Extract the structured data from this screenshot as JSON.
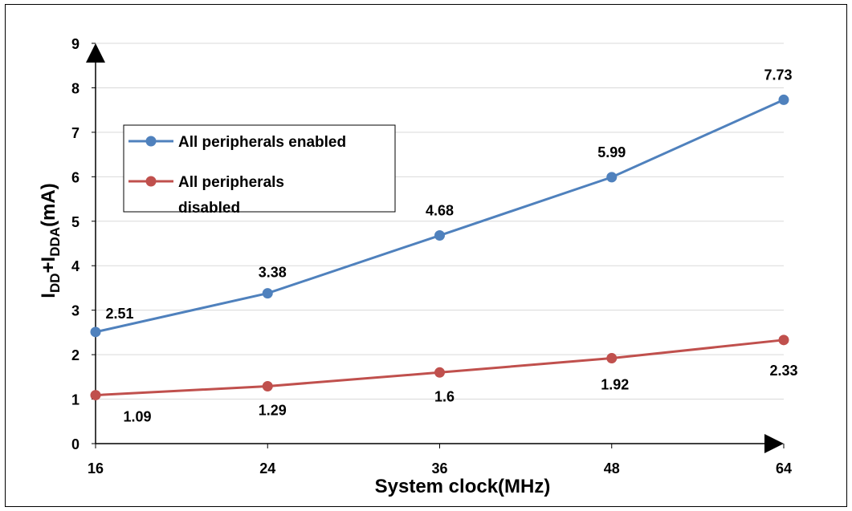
{
  "chart_data": {
    "type": "line",
    "categories": [
      "16",
      "24",
      "36",
      "48",
      "64"
    ],
    "series": [
      {
        "name": "All peripherals enabled",
        "values": [
          2.51,
          3.38,
          4.68,
          5.99,
          7.73
        ],
        "color": "#4F81BD"
      },
      {
        "name": "All peripherals disabled",
        "values": [
          1.09,
          1.29,
          1.6,
          1.92,
          2.33
        ],
        "color": "#C0504D"
      }
    ],
    "data_labels": {
      "enabled": [
        "2.51",
        "3.38",
        "4.68",
        "5.99",
        "7.73"
      ],
      "disabled": [
        "1.09",
        "1.29",
        "1.6",
        "1.92",
        "2.33"
      ]
    },
    "xlabel": "System clock(MHz)",
    "ylabel": {
      "main": "I",
      "sub1": "DD",
      "plus": "+I",
      "sub2": "DDA",
      "unit": "(mA)"
    },
    "ylim": [
      0,
      9
    ],
    "yticks": [
      "0",
      "1",
      "2",
      "3",
      "4",
      "5",
      "6",
      "7",
      "8",
      "9"
    ],
    "grid": "horizontal",
    "legend": {
      "placement": "upper-left",
      "entries": [
        "All peripherals enabled",
        "All peripherals",
        "disabled"
      ]
    }
  }
}
